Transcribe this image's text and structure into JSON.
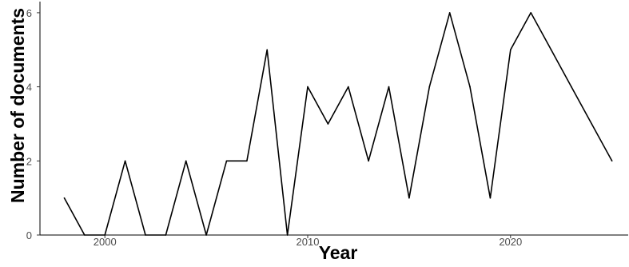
{
  "chart_data": {
    "type": "line",
    "xlabel": "Year",
    "ylabel": "Number of documents",
    "xlim": [
      1996.8,
      2025.8
    ],
    "ylim": [
      0,
      6.3
    ],
    "x_ticks": [
      2000,
      2010,
      2020
    ],
    "y_ticks": [
      0,
      2,
      4,
      6
    ],
    "grid": false,
    "series": [
      {
        "x": [
          1998,
          1999,
          2000,
          2001,
          2002,
          2003,
          2004,
          2005,
          2006,
          2007,
          2008,
          2009,
          2010,
          2011,
          2012,
          2013,
          2014,
          2015,
          2016,
          2017,
          2018,
          2019,
          2020,
          2021,
          2022,
          2023,
          2024,
          2025
        ],
        "values": [
          1,
          0,
          0,
          2,
          0,
          0,
          2,
          0,
          2,
          2,
          5,
          0,
          4,
          3,
          4,
          2,
          4,
          1,
          4,
          6,
          4,
          1,
          5,
          6,
          5,
          4,
          3,
          2
        ],
        "color": "#000000"
      }
    ]
  }
}
